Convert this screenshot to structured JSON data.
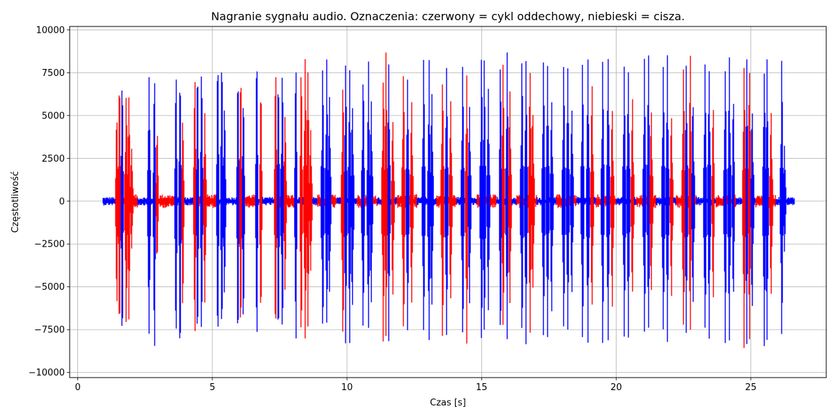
{
  "chart_data": {
    "type": "line",
    "title": "Nagranie sygnału audio. Oznaczenia: czerwony = cykl oddechowy, niebieski = cisza.",
    "xlabel": "Czas [s]",
    "ylabel": "Częstotliwość",
    "xlim": [
      -0.3,
      27.8
    ],
    "ylim": [
      -10300,
      10200
    ],
    "grid": true,
    "xticks": [
      0,
      5,
      10,
      15,
      20,
      25
    ],
    "xtick_labels": [
      "0",
      "5",
      "10",
      "15",
      "20",
      "25"
    ],
    "yticks": [
      -10000,
      -7500,
      -5000,
      -2500,
      0,
      2500,
      5000,
      7500,
      10000
    ],
    "ytick_labels": [
      "−10000",
      "−7500",
      "−5000",
      "−2500",
      "0",
      "2500",
      "5000",
      "7500",
      "10000"
    ],
    "signal": {
      "t_start": 0.95,
      "t_end": 26.6,
      "colors": {
        "breath": "#ff0000",
        "silence": "#0000ff"
      },
      "baseline_breath_amplitude": 400,
      "baseline_silence_amplitude": 250,
      "bursts": [
        {
          "t": 1.45,
          "amp_pos": 5400,
          "amp_neg": -6400,
          "label": "breath"
        },
        {
          "t": 1.55,
          "amp_pos": 7400,
          "amp_neg": -8700,
          "label": "breath"
        },
        {
          "t": 1.65,
          "amp_pos": 7650,
          "amp_neg": -8600,
          "label": "silence"
        },
        {
          "t": 1.8,
          "amp_pos": 6700,
          "amp_neg": -8100,
          "label": "breath"
        },
        {
          "t": 1.9,
          "amp_pos": 7100,
          "amp_neg": -7400,
          "label": "breath"
        },
        {
          "t": 2.0,
          "amp_pos": 3500,
          "amp_neg": -3000,
          "label": "breath"
        },
        {
          "t": 2.65,
          "amp_pos": 7600,
          "amp_neg": -8900,
          "label": "silence"
        },
        {
          "t": 2.85,
          "amp_pos": 7700,
          "amp_neg": -9000,
          "label": "silence"
        },
        {
          "t": 2.95,
          "amp_pos": 4600,
          "amp_neg": -3800,
          "label": "breath"
        },
        {
          "t": 3.65,
          "amp_pos": 7700,
          "amp_neg": -8900,
          "label": "silence"
        },
        {
          "t": 3.8,
          "amp_pos": 8100,
          "amp_neg": -9100,
          "label": "silence"
        },
        {
          "t": 3.9,
          "amp_pos": 5100,
          "amp_neg": -6400,
          "label": "breath"
        },
        {
          "t": 4.35,
          "amp_pos": 8200,
          "amp_neg": -8800,
          "label": "breath"
        },
        {
          "t": 4.45,
          "amp_pos": 8400,
          "amp_neg": -8700,
          "label": "silence"
        },
        {
          "t": 4.6,
          "amp_pos": 8300,
          "amp_neg": -8400,
          "label": "silence"
        },
        {
          "t": 4.72,
          "amp_pos": 5300,
          "amp_neg": -6100,
          "label": "breath"
        },
        {
          "t": 5.2,
          "amp_pos": 8600,
          "amp_neg": -8800,
          "label": "silence"
        },
        {
          "t": 5.35,
          "amp_pos": 8800,
          "amp_neg": -8600,
          "label": "silence"
        },
        {
          "t": 5.45,
          "amp_pos": 6000,
          "amp_neg": -6200,
          "label": "silence"
        },
        {
          "t": 5.95,
          "amp_pos": 8400,
          "amp_neg": -8700,
          "label": "silence"
        },
        {
          "t": 6.05,
          "amp_pos": 8100,
          "amp_neg": -8700,
          "label": "breath"
        },
        {
          "t": 6.15,
          "amp_pos": 6600,
          "amp_neg": -7800,
          "label": "silence"
        },
        {
          "t": 6.65,
          "amp_pos": 8800,
          "amp_neg": -8700,
          "label": "silence"
        },
        {
          "t": 6.8,
          "amp_pos": 7200,
          "amp_neg": -7600,
          "label": "breath"
        },
        {
          "t": 7.35,
          "amp_pos": 8300,
          "amp_neg": -8600,
          "label": "breath"
        },
        {
          "t": 7.45,
          "amp_pos": 8000,
          "amp_neg": -8900,
          "label": "silence"
        },
        {
          "t": 7.6,
          "amp_pos": 8300,
          "amp_neg": -8300,
          "label": "silence"
        },
        {
          "t": 7.7,
          "amp_pos": 5300,
          "amp_neg": -5700,
          "label": "breath"
        },
        {
          "t": 8.1,
          "amp_pos": 8200,
          "amp_neg": -8600,
          "label": "silence"
        },
        {
          "t": 8.3,
          "amp_pos": 8300,
          "amp_neg": -8700,
          "label": "breath"
        },
        {
          "t": 8.45,
          "amp_pos": 9100,
          "amp_neg": -8500,
          "label": "breath"
        },
        {
          "t": 8.55,
          "amp_pos": 8600,
          "amp_neg": -7700,
          "label": "breath"
        },
        {
          "t": 8.65,
          "amp_pos": 4200,
          "amp_neg": -4700,
          "label": "breath"
        },
        {
          "t": 9.1,
          "amp_pos": 8300,
          "amp_neg": -8700,
          "label": "silence"
        },
        {
          "t": 9.25,
          "amp_pos": 8400,
          "amp_neg": -8300,
          "label": "silence"
        },
        {
          "t": 9.35,
          "amp_pos": 6300,
          "amp_neg": -5900,
          "label": "silence"
        },
        {
          "t": 9.85,
          "amp_pos": 7000,
          "amp_neg": -8700,
          "label": "breath"
        },
        {
          "t": 9.95,
          "amp_pos": 8400,
          "amp_neg": -8700,
          "label": "silence"
        },
        {
          "t": 10.1,
          "amp_pos": 8600,
          "amp_neg": -8500,
          "label": "silence"
        },
        {
          "t": 10.2,
          "amp_pos": 6500,
          "amp_neg": -7000,
          "label": "silence"
        },
        {
          "t": 10.6,
          "amp_pos": 8300,
          "amp_neg": -8400,
          "label": "silence"
        },
        {
          "t": 10.8,
          "amp_pos": 8500,
          "amp_neg": -8500,
          "label": "silence"
        },
        {
          "t": 10.9,
          "amp_pos": 6200,
          "amp_neg": -6300,
          "label": "silence"
        },
        {
          "t": 11.35,
          "amp_pos": 8000,
          "amp_neg": -8600,
          "label": "breath"
        },
        {
          "t": 11.45,
          "amp_pos": 8800,
          "amp_neg": -8700,
          "label": "breath"
        },
        {
          "t": 11.55,
          "amp_pos": 8400,
          "amp_neg": -8300,
          "label": "silence"
        },
        {
          "t": 11.7,
          "amp_pos": 5400,
          "amp_neg": -5900,
          "label": "breath"
        },
        {
          "t": 12.1,
          "amp_pos": 8400,
          "amp_neg": -8600,
          "label": "breath"
        },
        {
          "t": 12.25,
          "amp_pos": 8100,
          "amp_neg": -8600,
          "label": "silence"
        },
        {
          "t": 12.4,
          "amp_pos": 6600,
          "amp_neg": -6500,
          "label": "breath"
        },
        {
          "t": 12.85,
          "amp_pos": 8600,
          "amp_neg": -8600,
          "label": "silence"
        },
        {
          "t": 13.05,
          "amp_pos": 8300,
          "amp_neg": -8600,
          "label": "silence"
        },
        {
          "t": 13.15,
          "amp_pos": 6800,
          "amp_neg": -6800,
          "label": "silence"
        },
        {
          "t": 13.55,
          "amp_pos": 8300,
          "amp_neg": -8700,
          "label": "breath"
        },
        {
          "t": 13.7,
          "amp_pos": 8400,
          "amp_neg": -8600,
          "label": "silence"
        },
        {
          "t": 13.85,
          "amp_pos": 6300,
          "amp_neg": -6500,
          "label": "breath"
        },
        {
          "t": 14.3,
          "amp_pos": 8500,
          "amp_neg": -8700,
          "label": "silence"
        },
        {
          "t": 14.45,
          "amp_pos": 8100,
          "amp_neg": -8500,
          "label": "breath"
        },
        {
          "t": 14.55,
          "amp_pos": 6400,
          "amp_neg": -6600,
          "label": "silence"
        },
        {
          "t": 15.0,
          "amp_pos": 9000,
          "amp_neg": -9300,
          "label": "silence"
        },
        {
          "t": 15.1,
          "amp_pos": 8500,
          "amp_neg": -8900,
          "label": "silence"
        },
        {
          "t": 15.25,
          "amp_pos": 6600,
          "amp_neg": -6800,
          "label": "silence"
        },
        {
          "t": 15.7,
          "amp_pos": 8500,
          "amp_neg": -8600,
          "label": "silence"
        },
        {
          "t": 15.8,
          "amp_pos": 8800,
          "amp_neg": -8600,
          "label": "breath"
        },
        {
          "t": 15.95,
          "amp_pos": 8800,
          "amp_neg": -8300,
          "label": "silence"
        },
        {
          "t": 16.05,
          "amp_pos": 6700,
          "amp_neg": -6700,
          "label": "breath"
        },
        {
          "t": 16.5,
          "amp_pos": 8500,
          "amp_neg": -8700,
          "label": "silence"
        },
        {
          "t": 16.65,
          "amp_pos": 8700,
          "amp_neg": -8700,
          "label": "silence"
        },
        {
          "t": 16.8,
          "amp_pos": 8600,
          "amp_neg": -8300,
          "label": "breath"
        },
        {
          "t": 16.9,
          "amp_pos": 6100,
          "amp_neg": -6100,
          "label": "breath"
        },
        {
          "t": 17.3,
          "amp_pos": 8700,
          "amp_neg": -8600,
          "label": "silence"
        },
        {
          "t": 17.45,
          "amp_pos": 8700,
          "amp_neg": -8600,
          "label": "silence"
        },
        {
          "t": 17.6,
          "amp_pos": 6600,
          "amp_neg": -6800,
          "label": "silence"
        },
        {
          "t": 18.05,
          "amp_pos": 8400,
          "amp_neg": -8600,
          "label": "silence"
        },
        {
          "t": 18.2,
          "amp_pos": 8500,
          "amp_neg": -8400,
          "label": "silence"
        },
        {
          "t": 18.35,
          "amp_pos": 6300,
          "amp_neg": -6200,
          "label": "silence"
        },
        {
          "t": 18.75,
          "amp_pos": 8400,
          "amp_neg": -9000,
          "label": "silence"
        },
        {
          "t": 18.95,
          "amp_pos": 8700,
          "amp_neg": -8700,
          "label": "silence"
        },
        {
          "t": 19.1,
          "amp_pos": 7100,
          "amp_neg": -6800,
          "label": "breath"
        },
        {
          "t": 19.5,
          "amp_pos": 8600,
          "amp_neg": -8800,
          "label": "silence"
        },
        {
          "t": 19.7,
          "amp_pos": 8700,
          "amp_neg": -8500,
          "label": "silence"
        },
        {
          "t": 19.85,
          "amp_pos": 6100,
          "amp_neg": -6500,
          "label": "breath"
        },
        {
          "t": 20.3,
          "amp_pos": 8400,
          "amp_neg": -8800,
          "label": "silence"
        },
        {
          "t": 20.45,
          "amp_pos": 8300,
          "amp_neg": -8400,
          "label": "silence"
        },
        {
          "t": 20.6,
          "amp_pos": 6300,
          "amp_neg": -6100,
          "label": "breath"
        },
        {
          "t": 21.05,
          "amp_pos": 8700,
          "amp_neg": -8500,
          "label": "silence"
        },
        {
          "t": 21.2,
          "amp_pos": 9100,
          "amp_neg": -8700,
          "label": "silence"
        },
        {
          "t": 21.3,
          "amp_pos": 6100,
          "amp_neg": -6100,
          "label": "breath"
        },
        {
          "t": 21.75,
          "amp_pos": 8400,
          "amp_neg": -8800,
          "label": "silence"
        },
        {
          "t": 21.9,
          "amp_pos": 8600,
          "amp_neg": -8500,
          "label": "silence"
        },
        {
          "t": 22.05,
          "amp_pos": 5800,
          "amp_neg": -5900,
          "label": "breath"
        },
        {
          "t": 22.5,
          "amp_pos": 8400,
          "amp_neg": -8600,
          "label": "breath"
        },
        {
          "t": 22.6,
          "amp_pos": 8700,
          "amp_neg": -8500,
          "label": "silence"
        },
        {
          "t": 22.75,
          "amp_pos": 8700,
          "amp_neg": -8200,
          "label": "breath"
        },
        {
          "t": 22.85,
          "amp_pos": 6500,
          "amp_neg": -6700,
          "label": "silence"
        },
        {
          "t": 23.3,
          "amp_pos": 8500,
          "amp_neg": -8700,
          "label": "silence"
        },
        {
          "t": 23.45,
          "amp_pos": 8600,
          "amp_neg": -8500,
          "label": "silence"
        },
        {
          "t": 23.6,
          "amp_pos": 6100,
          "amp_neg": -6200,
          "label": "breath"
        },
        {
          "t": 24.05,
          "amp_pos": 8500,
          "amp_neg": -8600,
          "label": "silence"
        },
        {
          "t": 24.2,
          "amp_pos": 8500,
          "amp_neg": -8500,
          "label": "silence"
        },
        {
          "t": 24.35,
          "amp_pos": 6500,
          "amp_neg": -6300,
          "label": "silence"
        },
        {
          "t": 24.75,
          "amp_pos": 8300,
          "amp_neg": -8900,
          "label": "breath"
        },
        {
          "t": 24.85,
          "amp_pos": 8400,
          "amp_neg": -8600,
          "label": "silence"
        },
        {
          "t": 24.95,
          "amp_pos": 8500,
          "amp_neg": -8300,
          "label": "breath"
        },
        {
          "t": 25.05,
          "amp_pos": 6200,
          "amp_neg": -6600,
          "label": "silence"
        },
        {
          "t": 25.5,
          "amp_pos": 8700,
          "amp_neg": -9000,
          "label": "silence"
        },
        {
          "t": 25.6,
          "amp_pos": 8300,
          "amp_neg": -9100,
          "label": "silence"
        },
        {
          "t": 25.75,
          "amp_pos": 6000,
          "amp_neg": -6100,
          "label": "breath"
        },
        {
          "t": 26.15,
          "amp_pos": 8900,
          "amp_neg": -8700,
          "label": "silence"
        },
        {
          "t": 26.25,
          "amp_pos": 3300,
          "amp_neg": -3100,
          "label": "silence"
        }
      ]
    }
  }
}
